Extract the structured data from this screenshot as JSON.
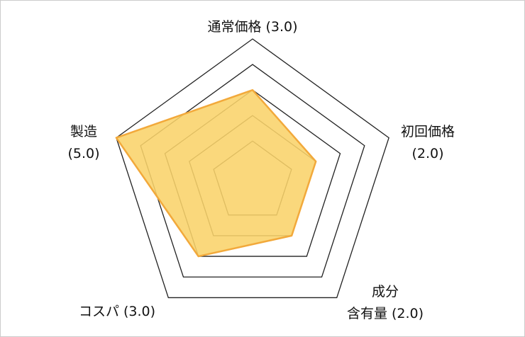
{
  "chart_data": {
    "type": "radar",
    "categories": [
      [
        "通常価格"
      ],
      [
        "初回価格"
      ],
      [
        "成分",
        "含有量"
      ],
      [
        "コスパ"
      ],
      [
        "製造"
      ]
    ],
    "values": [
      3,
      2,
      2,
      3,
      5
    ],
    "value_labels": [
      "(3.0)",
      "(2.0)",
      "(2.0)",
      "(3.0)",
      "(5.0)"
    ],
    "rlim": [
      -0.6,
      5
    ],
    "rticks": [
      1,
      2,
      3,
      4,
      5
    ],
    "color": "#f9d36a",
    "edge_color": "#f2a93b",
    "grid_color": "#222"
  }
}
